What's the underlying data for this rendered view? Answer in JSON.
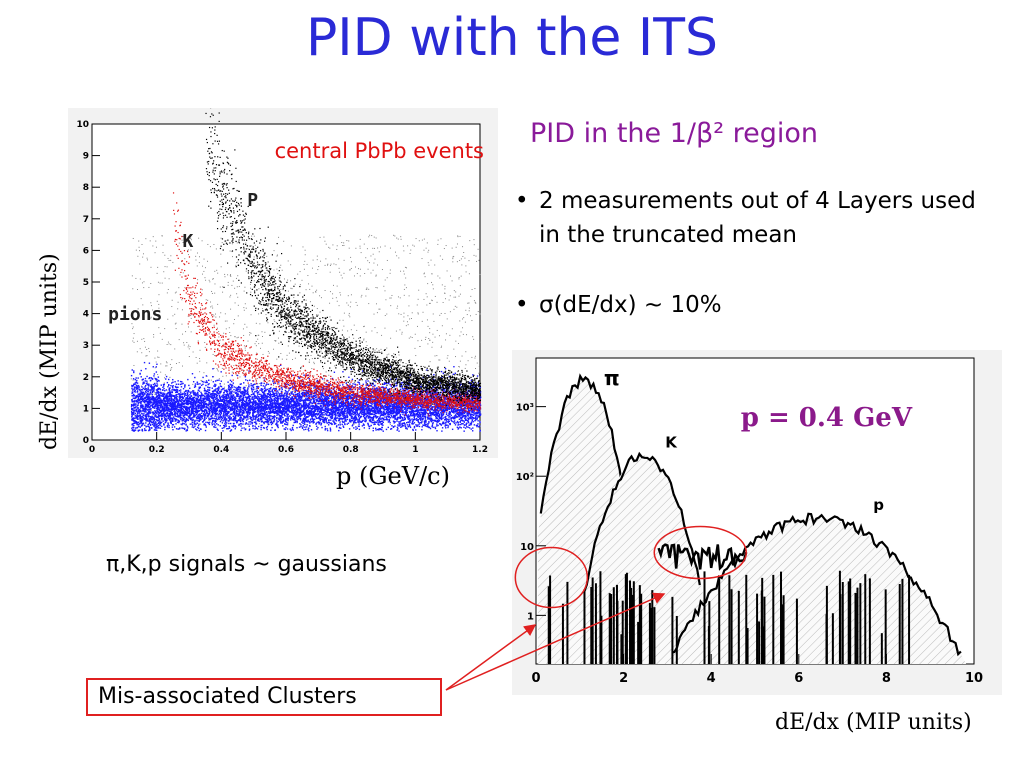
{
  "title": "PID with the ITS",
  "subtitle": "PID in the 1/β² region",
  "bullets": [
    "2 measurements out of 4 Layers used in the truncated mean",
    "σ(dE/dx) ~ 10%"
  ],
  "bullet_marker": "•",
  "gauss_text": "π,K,p signals ~ gaussians",
  "mis_label": "Mis-associated Clusters",
  "colors": {
    "title": "#2a2ad6",
    "subtitle": "#8a1a9a",
    "pions": "#1a1aff",
    "kaons": "#e01010",
    "protons": "#000000",
    "annotation": "#e02020",
    "momentum_label": "#8b1a8b"
  },
  "chart_data": [
    {
      "type": "scatter",
      "title": "",
      "annotation": "central PbPb events",
      "xlabel": "p (GeV/c)",
      "ylabel": "dE/dx (MIP units)",
      "xlim": [
        0,
        1.2
      ],
      "ylim": [
        0,
        10
      ],
      "x_ticks": [
        "0",
        "0.2",
        "0.4",
        "0.6",
        "0.8",
        "1",
        "1.2"
      ],
      "y_ticks": [
        "0",
        "1",
        "2",
        "3",
        "4",
        "5",
        "6",
        "7",
        "8",
        "9",
        "10"
      ],
      "series": [
        {
          "name": "pions",
          "color": "#1a1aff",
          "band": {
            "p_min": 0.12,
            "p_max": 1.2,
            "mean": 1.1,
            "spread": 0.35
          }
        },
        {
          "name": "K",
          "color": "#e01010",
          "curve": [
            [
              0.25,
              7.0
            ],
            [
              0.3,
              4.5
            ],
            [
              0.4,
              2.8
            ],
            [
              0.6,
              1.9
            ],
            [
              0.8,
              1.5
            ],
            [
              1.0,
              1.3
            ],
            [
              1.2,
              1.2
            ]
          ]
        },
        {
          "name": "P",
          "color": "#000000",
          "curve": [
            [
              0.35,
              9.8
            ],
            [
              0.4,
              7.8
            ],
            [
              0.5,
              5.5
            ],
            [
              0.6,
              4.0
            ],
            [
              0.8,
              2.6
            ],
            [
              1.0,
              1.9
            ],
            [
              1.2,
              1.6
            ]
          ]
        }
      ],
      "labels": [
        {
          "text": "pions",
          "x": 0.05,
          "y": 3.8
        },
        {
          "text": "K",
          "x": 0.28,
          "y": 6.1
        },
        {
          "text": "P",
          "x": 0.48,
          "y": 7.4
        }
      ]
    },
    {
      "type": "area",
      "title": "",
      "annotation": "p = 0.4 GeV",
      "xlabel": "dE/dx (MIP units)",
      "ylabel": "",
      "log_y": true,
      "xlim": [
        0,
        10
      ],
      "ylim": [
        0.2,
        5000
      ],
      "x_ticks": [
        "0",
        "2",
        "4",
        "6",
        "8",
        "10"
      ],
      "y_ticks": [
        "1",
        "10",
        "10²",
        "10³"
      ],
      "series": [
        {
          "name": "π",
          "peak": 1.1,
          "height": 2500,
          "sigma": 0.33
        },
        {
          "name": "K",
          "peak": 2.45,
          "height": 200,
          "sigma": 0.45
        },
        {
          "name": "p",
          "peak": 6.4,
          "height": 25,
          "sigma": 1.1
        }
      ],
      "mis_associated_level": 7
    }
  ]
}
